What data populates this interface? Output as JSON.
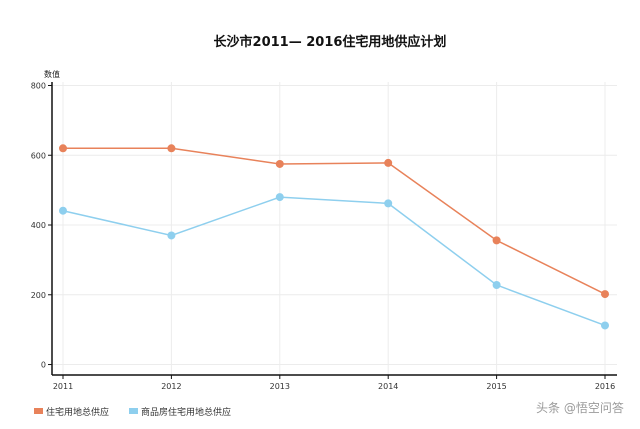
{
  "chart_data": {
    "type": "line",
    "title": "长沙市2011— 2016住宅用地供应计划",
    "ylabel": "数值",
    "xlabel": "",
    "x": [
      "2011",
      "2012",
      "2013",
      "2014",
      "2015",
      "2016"
    ],
    "ylim": [
      -30,
      810
    ],
    "yticks": [
      0,
      200,
      400,
      600,
      800
    ],
    "grid": true,
    "legend": "bottom-left",
    "series": [
      {
        "name": "住宅用地总供应",
        "color": "#e8825a",
        "values": [
          620,
          620,
          575,
          578,
          356,
          202
        ]
      },
      {
        "name": "商品房住宅用地总供应",
        "color": "#8ecfee",
        "values": [
          441,
          370,
          480,
          462,
          228,
          112
        ]
      }
    ]
  },
  "watermark": "头条 @悟空问答"
}
